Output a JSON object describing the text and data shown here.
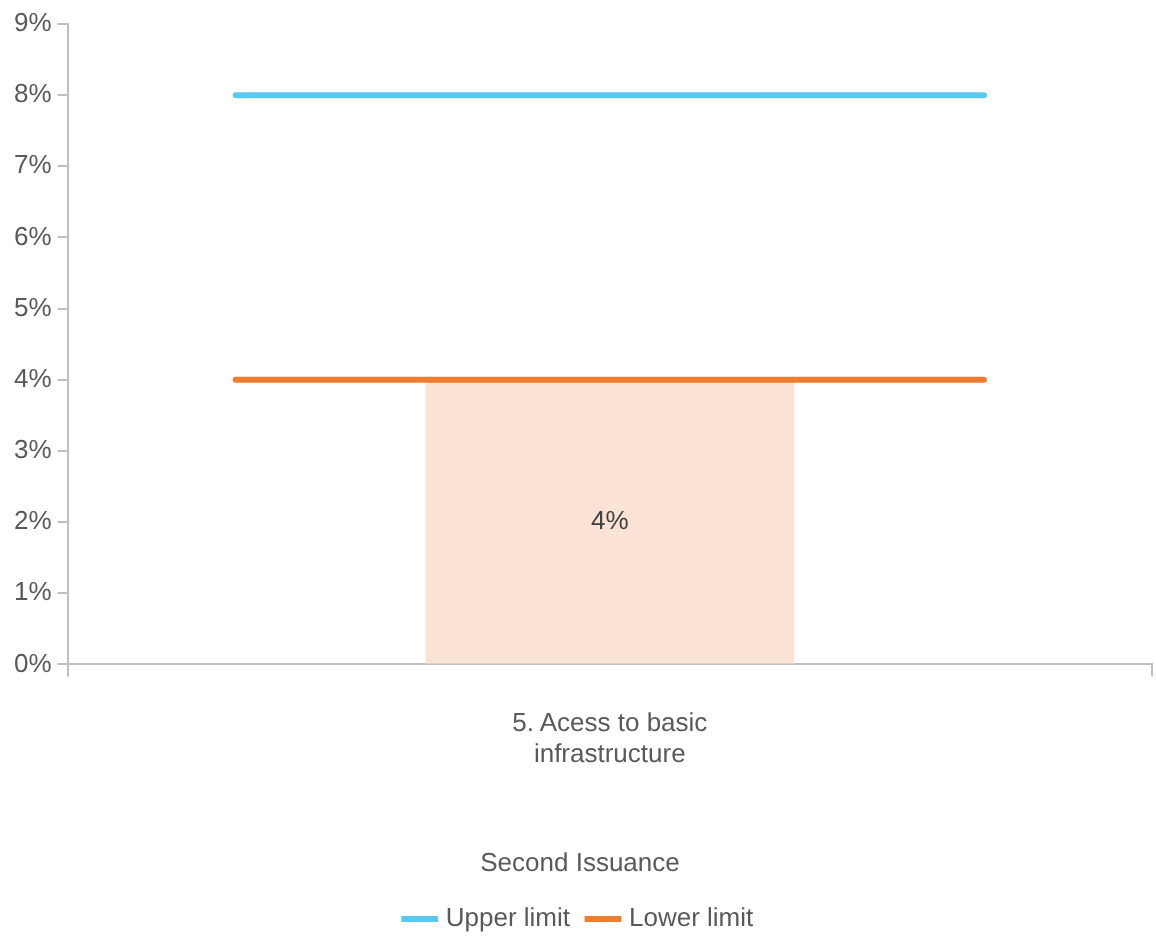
{
  "chart_data": {
    "type": "bar",
    "categories": [
      "5. Acess to basic infrastructure"
    ],
    "series": [
      {
        "color": "#fbe3d6",
        "values": [
          4
        ],
        "value_labels": [
          "4%"
        ]
      }
    ],
    "ref_lines": [
      {
        "axis": "y",
        "value": 8,
        "label": "Upper limit",
        "color": "#5bc8f0",
        "line_style": "solid"
      },
      {
        "axis": "y",
        "value": 4,
        "label": "Lower limit",
        "color": "#ed7d31",
        "line_style": "solid"
      }
    ],
    "ylim": [
      0,
      9
    ],
    "yticks": [
      {
        "value": 0,
        "label": "0%"
      },
      {
        "value": 1,
        "label": "1%"
      },
      {
        "value": 2,
        "label": "2%"
      },
      {
        "value": 3,
        "label": "3%"
      },
      {
        "value": 4,
        "label": "4%"
      },
      {
        "value": 5,
        "label": "5%"
      },
      {
        "value": 6,
        "label": "6%"
      },
      {
        "value": 7,
        "label": "7%"
      },
      {
        "value": 8,
        "label": "8%"
      },
      {
        "value": 9,
        "label": "9%"
      }
    ],
    "grid": false,
    "legend": "bottom",
    "legend_title": "Second Issuance"
  }
}
